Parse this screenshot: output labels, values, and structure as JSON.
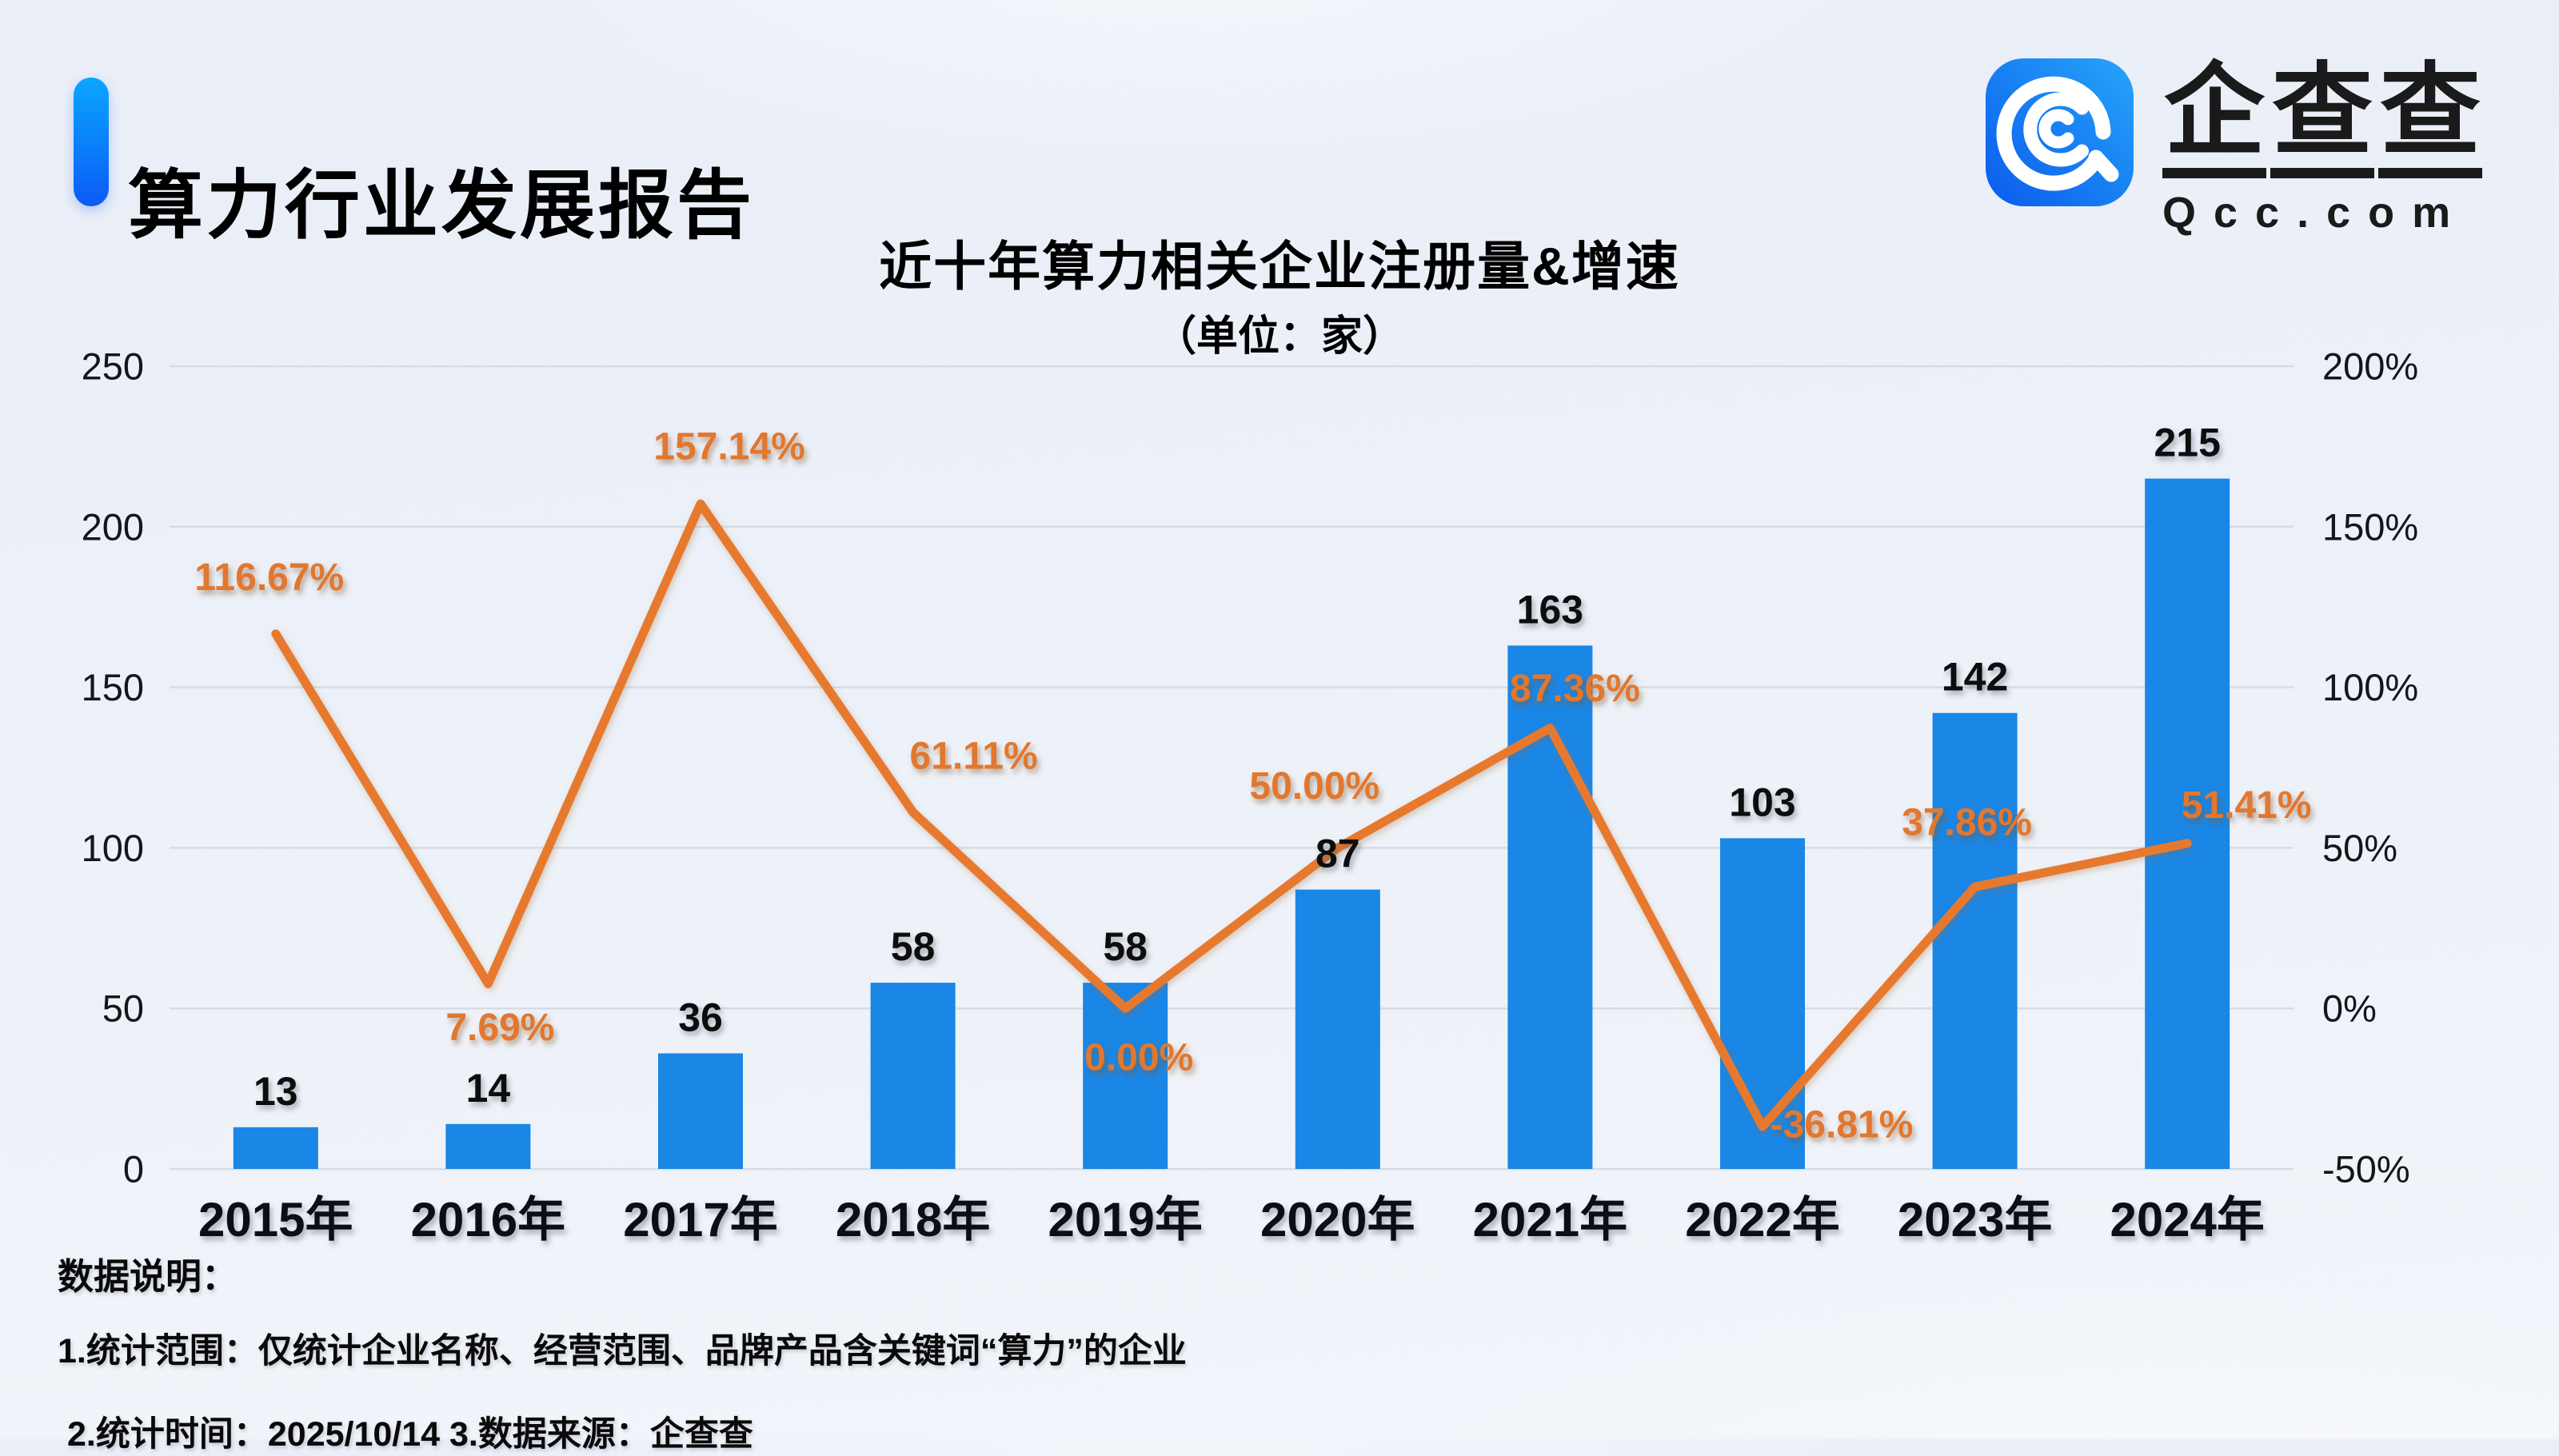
{
  "header": {
    "title": "算力行业发展报告"
  },
  "logo": {
    "brand": "企查查",
    "domain": "Qcc.com",
    "icon": "qcc-magnifier-icon",
    "icon_gradient": [
      "#0a5bec",
      "#27a5fa"
    ]
  },
  "chart_data": {
    "type": "bar",
    "title": "近十年算力相关企业注册量&增速",
    "subtitle": "（单位：家）",
    "categories": [
      "2015年",
      "2016年",
      "2017年",
      "2018年",
      "2019年",
      "2020年",
      "2021年",
      "2022年",
      "2023年",
      "2024年"
    ],
    "series": [
      {
        "name": "注册量",
        "type": "bar",
        "values": [
          13,
          14,
          36,
          58,
          58,
          87,
          163,
          103,
          142,
          215
        ],
        "labels": [
          "13",
          "14",
          "36",
          "58",
          "58",
          "87",
          "163",
          "103",
          "142",
          "215"
        ]
      },
      {
        "name": "增速",
        "type": "line",
        "values": [
          116.67,
          7.69,
          157.14,
          61.11,
          0.0,
          50.0,
          87.36,
          -36.81,
          37.86,
          51.41
        ],
        "labels": [
          "116.67%",
          "7.69%",
          "157.14%",
          "61.11%",
          "0.00%",
          "50.00%",
          "87.36%",
          "-36.81%",
          "37.86%",
          "51.41%"
        ],
        "label_side": [
          "above",
          "below",
          "above",
          "above",
          "below",
          "above",
          "above",
          "right",
          "above",
          "above"
        ]
      }
    ],
    "left_axis": {
      "ticks": [
        "250",
        "200",
        "150",
        "100",
        "50",
        "0"
      ],
      "min": 0,
      "max": 250
    },
    "right_axis": {
      "ticks": [
        "200%",
        "150%",
        "100%",
        "50%",
        "0%",
        "-50%"
      ],
      "min": -50,
      "max": 200
    },
    "grid": true,
    "legend": "none",
    "colors": {
      "bar": "#1a86e5",
      "line": "#e7792f",
      "value_label": "#111111",
      "pct_label": "#e2772e"
    }
  },
  "footer": {
    "heading": "数据说明：",
    "line1": "1.统计范围：仅统计企业名称、经营范围、品牌产品含关键词“算力”的企业",
    "line2": "2.统计时间：2025/10/14  3.数据来源：企查查"
  }
}
